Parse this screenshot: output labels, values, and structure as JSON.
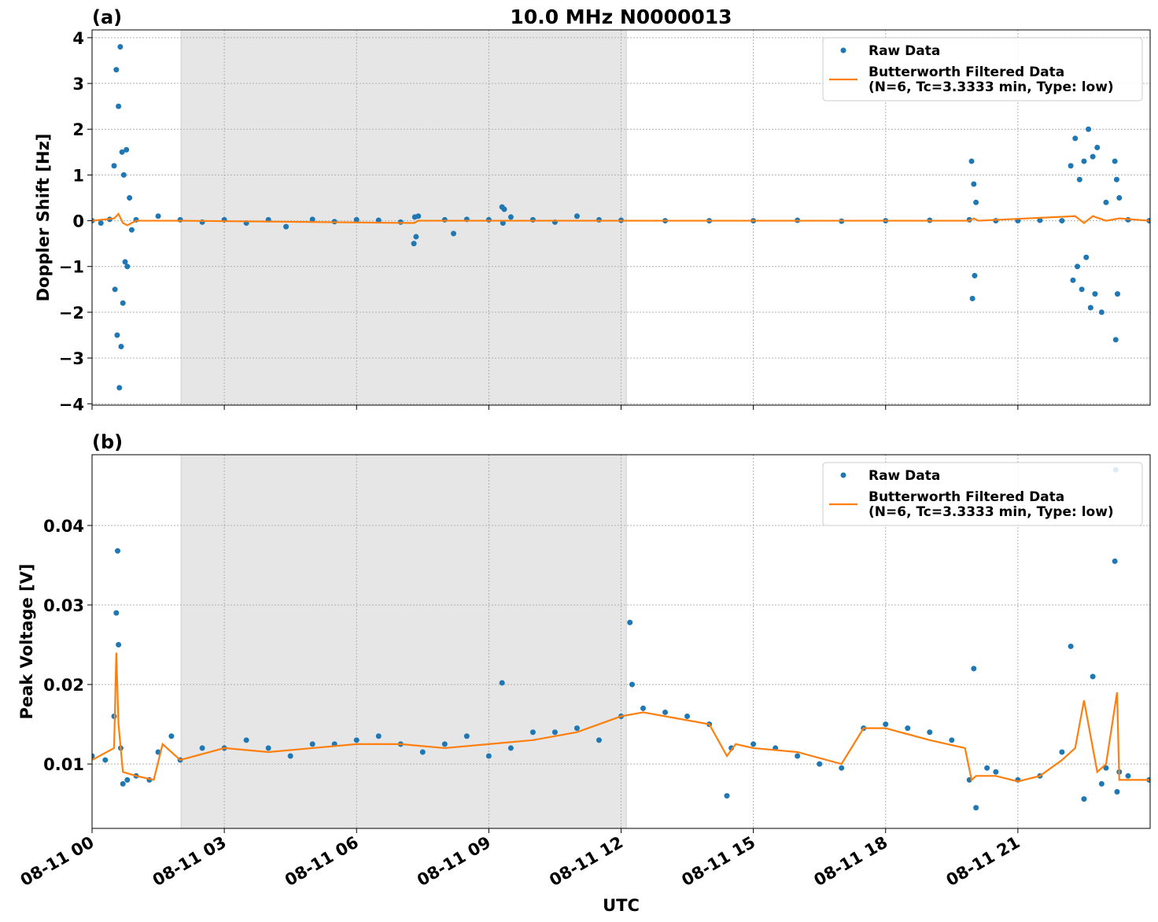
{
  "chart_data": [
    {
      "type": "scatter",
      "title": "10.0 MHz N0000013",
      "panel_label": "(a)",
      "ylabel": "Doppler Shift [Hz]",
      "xlim": [
        0,
        24
      ],
      "xticks": [
        0,
        3,
        6,
        9,
        12,
        15,
        18,
        21
      ],
      "ylim": [
        -4.03,
        4.17
      ],
      "yticks": [
        {
          "value": -4,
          "label": "−4"
        },
        {
          "value": -3,
          "label": "−3"
        },
        {
          "value": -2,
          "label": "−2"
        },
        {
          "value": -1,
          "label": "−1"
        },
        0,
        1,
        2,
        3,
        4
      ],
      "grid": true,
      "legend": "upper right",
      "shade": [
        2.02,
        12.12
      ],
      "shade_color": "#e6e6e6",
      "series": [
        {
          "name": "Raw Data",
          "color": "#1f77b4",
          "mark": "marker",
          "x": [
            0,
            0.2,
            0.4,
            0.5,
            0.52,
            0.55,
            0.57,
            0.6,
            0.62,
            0.64,
            0.66,
            0.68,
            0.7,
            0.72,
            0.75,
            0.78,
            0.8,
            0.85,
            0.9,
            1.0,
            1.5,
            2.0,
            2.5,
            3.0,
            3.5,
            4.0,
            4.4,
            5.0,
            5.5,
            6.0,
            6.5,
            7.0,
            7.3,
            7.32,
            7.35,
            7.4,
            8.0,
            8.2,
            8.5,
            9.0,
            9.3,
            9.32,
            9.35,
            9.5,
            10.0,
            10.5,
            11.0,
            11.5,
            12.0,
            13,
            14,
            15,
            16,
            17,
            18,
            19,
            19.9,
            19.95,
            19.97,
            20.0,
            20.02,
            20.05,
            20.5,
            21,
            21.5,
            22,
            22.2,
            22.25,
            22.3,
            22.35,
            22.4,
            22.45,
            22.5,
            22.55,
            22.6,
            22.65,
            22.7,
            22.75,
            22.8,
            22.9,
            23.0,
            23.2,
            23.22,
            23.24,
            23.26,
            23.3,
            23.5,
            23.98
          ],
          "values": [
            0,
            -0.05,
            0.03,
            1.2,
            -1.5,
            3.3,
            -2.5,
            2.5,
            -3.65,
            3.8,
            -2.75,
            1.5,
            -1.8,
            1.0,
            -0.9,
            1.55,
            -1.0,
            0.5,
            -0.2,
            0.02,
            0.1,
            0.02,
            -0.03,
            0.02,
            -0.05,
            0.02,
            -0.13,
            0.03,
            -0.02,
            0.02,
            0.01,
            -0.03,
            -0.5,
            0.08,
            -0.35,
            0.1,
            0.02,
            -0.28,
            0.03,
            0.02,
            0.3,
            -0.05,
            0.25,
            0.08,
            0.02,
            -0.03,
            0.1,
            0.02,
            0.01,
            0,
            0,
            0,
            0.01,
            -0.01,
            0,
            0.01,
            0.02,
            1.3,
            -1.7,
            0.8,
            -1.2,
            0.4,
            0,
            0,
            0.01,
            0,
            1.2,
            -1.3,
            1.8,
            -1.0,
            0.9,
            -1.5,
            1.3,
            -0.8,
            2.0,
            -1.9,
            1.4,
            -1.6,
            1.6,
            -2.0,
            0.4,
            1.3,
            -2.6,
            0.9,
            -1.6,
            0.5,
            0.02,
            0
          ]
        },
        {
          "name": "Butterworth Filtered Data\n(N=6, Tc=3.3333 min, Type: low)",
          "color": "#ff7f0e",
          "mark": "line",
          "x": [
            0,
            0.5,
            0.6,
            0.7,
            0.8,
            1,
            2,
            7.3,
            7.4,
            8,
            19.9,
            20,
            20.1,
            22.3,
            22.5,
            22.7,
            23,
            23.3,
            23.98
          ],
          "values": [
            0,
            0.05,
            0.15,
            -0.05,
            -0.1,
            0,
            0,
            -0.05,
            0,
            0,
            0,
            0.05,
            0,
            0.1,
            -0.05,
            0.1,
            0,
            0.05,
            0
          ]
        }
      ]
    },
    {
      "type": "scatter",
      "panel_label": "(b)",
      "ylabel": "Peak Voltage [V]",
      "xlabel": "UTC",
      "xlim": [
        0,
        24
      ],
      "xticks": [
        {
          "value": 0,
          "label": "08-11 00"
        },
        {
          "value": 3,
          "label": "08-11 03"
        },
        {
          "value": 6,
          "label": "08-11 06"
        },
        {
          "value": 9,
          "label": "08-11 09"
        },
        {
          "value": 12,
          "label": "08-11 12"
        },
        {
          "value": 15,
          "label": "08-11 15"
        },
        {
          "value": 18,
          "label": "08-11 18"
        },
        {
          "value": 21,
          "label": "08-11 21"
        }
      ],
      "ylim": [
        0.0019,
        0.0489
      ],
      "yticks": [
        0.01,
        0.02,
        0.03,
        0.04
      ],
      "grid": true,
      "legend": "upper right",
      "shade": [
        2.02,
        12.12
      ],
      "shade_color": "#e6e6e6",
      "series": [
        {
          "name": "Raw Data",
          "color": "#1f77b4",
          "mark": "marker",
          "x": [
            0,
            0.3,
            0.5,
            0.55,
            0.58,
            0.6,
            0.65,
            0.7,
            0.8,
            1.0,
            1.3,
            1.5,
            1.8,
            2.0,
            2.5,
            3.0,
            3.5,
            4.0,
            4.5,
            5.0,
            5.5,
            6.0,
            6.5,
            7.0,
            7.5,
            8.0,
            8.5,
            9.0,
            9.3,
            9.5,
            10.0,
            10.5,
            11.0,
            11.5,
            12.0,
            12.2,
            12.25,
            12.5,
            13.0,
            13.5,
            14.0,
            14.4,
            14.5,
            15.0,
            15.5,
            16.0,
            16.5,
            17.0,
            17.5,
            18.0,
            18.5,
            19.0,
            19.5,
            19.9,
            20.0,
            20.05,
            20.3,
            20.5,
            21.0,
            21.5,
            22.0,
            22.2,
            22.5,
            22.7,
            22.9,
            23.0,
            23.2,
            23.22,
            23.25,
            23.3,
            23.5,
            23.98
          ],
          "values": [
            0.011,
            0.0105,
            0.016,
            0.029,
            0.0368,
            0.025,
            0.012,
            0.0075,
            0.008,
            0.0085,
            0.008,
            0.0115,
            0.0135,
            0.0105,
            0.012,
            0.012,
            0.013,
            0.012,
            0.011,
            0.0125,
            0.0125,
            0.013,
            0.0135,
            0.0125,
            0.0115,
            0.0125,
            0.0135,
            0.011,
            0.0202,
            0.012,
            0.014,
            0.014,
            0.0145,
            0.013,
            0.016,
            0.0278,
            0.02,
            0.017,
            0.0165,
            0.016,
            0.015,
            0.006,
            0.012,
            0.0125,
            0.012,
            0.011,
            0.01,
            0.0095,
            0.0145,
            0.015,
            0.0145,
            0.014,
            0.013,
            0.008,
            0.022,
            0.0045,
            0.0095,
            0.009,
            0.008,
            0.0085,
            0.0115,
            0.0248,
            0.0056,
            0.021,
            0.0075,
            0.0095,
            0.0355,
            0.047,
            0.0065,
            0.009,
            0.0085,
            0.008
          ]
        },
        {
          "name": "Butterworth Filtered Data\n(N=6, Tc=3.3333 min, Type: low)",
          "color": "#ff7f0e",
          "mark": "line",
          "x": [
            0,
            0.5,
            0.55,
            0.6,
            0.7,
            1,
            1.4,
            1.6,
            2,
            3,
            4,
            5,
            6,
            7,
            8,
            9,
            10,
            11,
            12,
            12.5,
            13,
            14,
            14.4,
            14.6,
            15,
            16,
            17,
            17.5,
            18,
            19,
            19.8,
            19.95,
            20.05,
            20.5,
            21,
            21.5,
            22,
            22.3,
            22.5,
            22.8,
            23,
            23.25,
            23.3,
            23.5,
            23.98
          ],
          "values": [
            0.0105,
            0.012,
            0.024,
            0.015,
            0.009,
            0.0085,
            0.008,
            0.0125,
            0.0105,
            0.012,
            0.0115,
            0.012,
            0.0125,
            0.0125,
            0.012,
            0.0125,
            0.013,
            0.014,
            0.016,
            0.0165,
            0.016,
            0.015,
            0.011,
            0.0125,
            0.012,
            0.0115,
            0.01,
            0.0145,
            0.0145,
            0.013,
            0.012,
            0.008,
            0.0085,
            0.0085,
            0.0078,
            0.0085,
            0.0105,
            0.012,
            0.018,
            0.009,
            0.01,
            0.019,
            0.008,
            0.008,
            0.008
          ]
        }
      ]
    }
  ]
}
